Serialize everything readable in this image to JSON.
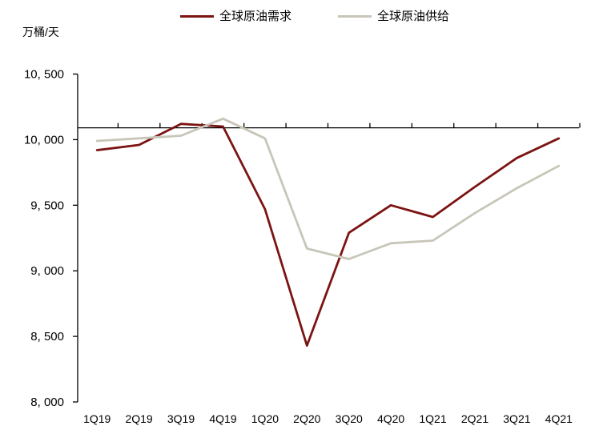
{
  "chart_data": {
    "type": "line",
    "title": "",
    "unit_label": "万桶/天",
    "categories": [
      "1Q19",
      "2Q19",
      "3Q19",
      "4Q19",
      "1Q20",
      "2Q20",
      "3Q20",
      "4Q20",
      "1Q21",
      "2Q21",
      "3Q21",
      "4Q21"
    ],
    "series": [
      {
        "name": "全球原油需求",
        "color": "#7b1412",
        "values": [
          9920,
          9960,
          10120,
          10100,
          9470,
          8430,
          9290,
          9500,
          9410,
          9640,
          9860,
          10010
        ]
      },
      {
        "name": "全球原油供给",
        "color": "#c8c6b9",
        "values": [
          9990,
          10010,
          10030,
          10160,
          10010,
          9170,
          9090,
          9210,
          9230,
          9440,
          9630,
          9800
        ]
      }
    ],
    "xlabel": "",
    "ylabel": "万桶/天",
    "ylim": [
      8000,
      10500
    ],
    "ytick_interval": 500,
    "y_ticks": [
      {
        "value": 10500,
        "label": "10, 500"
      },
      {
        "value": 10000,
        "label": "10, 000"
      },
      {
        "value": 9500,
        "label": "9, 500"
      },
      {
        "value": 9000,
        "label": "9, 000"
      },
      {
        "value": 8500,
        "label": "8, 500"
      },
      {
        "value": 8000,
        "label": "8, 000"
      }
    ],
    "x_axis_cross_value": 10090,
    "axis_color": "#000000",
    "grid": false,
    "legend_position": "top"
  }
}
